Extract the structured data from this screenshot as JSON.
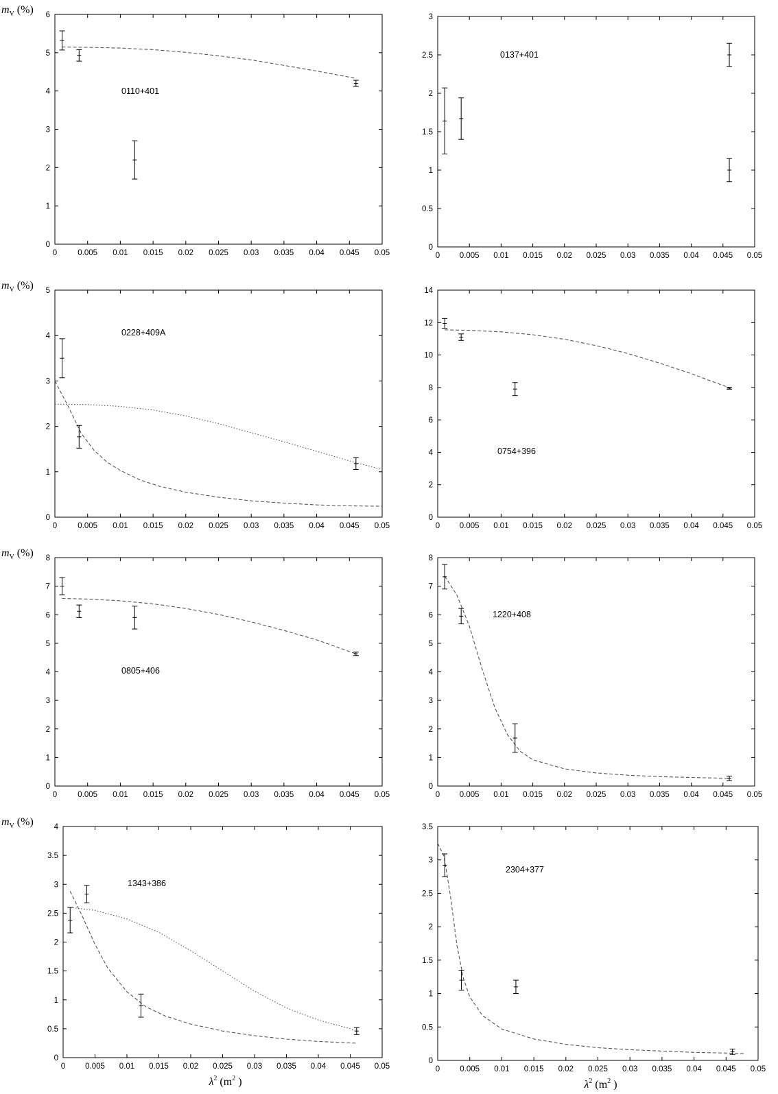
{
  "chart_data": [
    {
      "type": "scatter",
      "source": "0110+401",
      "ylabel": "m_V (%)",
      "xlabel": "",
      "xlim": [
        0,
        0.05
      ],
      "ylim": [
        0,
        6
      ],
      "xticks": [
        "0",
        "0.005",
        "0.01",
        "0.015",
        "0.02",
        "0.025",
        "0.03",
        "0.035",
        "0.04",
        "0.045",
        "0.05"
      ],
      "yticks": [
        "0",
        "1",
        "2",
        "3",
        "4",
        "5",
        "6"
      ],
      "points": [
        {
          "x": 0.0011,
          "y": 5.32,
          "err": 0.25
        },
        {
          "x": 0.0037,
          "y": 4.93,
          "err": 0.15
        },
        {
          "x": 0.0122,
          "y": 2.2,
          "err": 0.5
        },
        {
          "x": 0.046,
          "y": 4.2,
          "err": 0.08
        }
      ],
      "curves": [
        {
          "style": "dashed",
          "x": [
            0.0011,
            0.005,
            0.01,
            0.015,
            0.02,
            0.025,
            0.03,
            0.035,
            0.04,
            0.046
          ],
          "y": [
            5.15,
            5.14,
            5.12,
            5.08,
            5.01,
            4.92,
            4.81,
            4.67,
            4.52,
            4.33
          ]
        }
      ]
    },
    {
      "type": "scatter",
      "source": "0137+401",
      "ylabel": "",
      "xlabel": "",
      "xlim": [
        0,
        0.05
      ],
      "ylim": [
        0,
        3
      ],
      "xticks": [
        "0",
        "0.005",
        "0.01",
        "0.015",
        "0.02",
        "0.025",
        "0.03",
        "0.035",
        "0.04",
        "0.045",
        "0.05"
      ],
      "yticks": [
        "0",
        "0.5",
        "1",
        "1.5",
        "2",
        "2.5",
        "3"
      ],
      "points": [
        {
          "x": 0.0011,
          "y": 1.64,
          "err": 0.43
        },
        {
          "x": 0.0037,
          "y": 1.67,
          "err": 0.27
        },
        {
          "x": 0.046,
          "y": 2.5,
          "err": 0.15
        },
        {
          "x": 0.046,
          "y": 1.0,
          "err": 0.15
        }
      ],
      "curves": []
    },
    {
      "type": "scatter",
      "source": "0228+409A",
      "ylabel": "m_V (%)",
      "xlabel": "",
      "xlim": [
        0,
        0.05
      ],
      "ylim": [
        0,
        5
      ],
      "xticks": [
        "0",
        "0.005",
        "0.01",
        "0.015",
        "0.02",
        "0.025",
        "0.03",
        "0.035",
        "0.04",
        "0.045",
        "0.05"
      ],
      "yticks": [
        "0",
        "1",
        "2",
        "3",
        "4",
        "5"
      ],
      "points": [
        {
          "x": 0.0011,
          "y": 3.5,
          "err": 0.43
        },
        {
          "x": 0.0037,
          "y": 1.77,
          "err": 0.25
        },
        {
          "x": 0.046,
          "y": 1.18,
          "err": 0.13
        }
      ],
      "curves": [
        {
          "style": "dashed",
          "x": [
            0,
            0.002,
            0.004,
            0.006,
            0.008,
            0.01,
            0.013,
            0.016,
            0.02,
            0.025,
            0.03,
            0.035,
            0.04,
            0.045,
            0.05
          ],
          "y": [
            3.0,
            2.45,
            1.85,
            1.47,
            1.21,
            1.03,
            0.82,
            0.68,
            0.55,
            0.44,
            0.36,
            0.31,
            0.27,
            0.25,
            0.24
          ]
        },
        {
          "style": "dotted",
          "x": [
            0,
            0.005,
            0.01,
            0.015,
            0.02,
            0.025,
            0.03,
            0.035,
            0.04,
            0.045,
            0.05
          ],
          "y": [
            2.49,
            2.48,
            2.44,
            2.36,
            2.23,
            2.06,
            1.86,
            1.66,
            1.45,
            1.24,
            1.05
          ]
        }
      ]
    },
    {
      "type": "scatter",
      "source": "0754+396",
      "ylabel": "",
      "xlabel": "",
      "xlim": [
        0,
        0.05
      ],
      "ylim": [
        0,
        14
      ],
      "xticks": [
        "0",
        "0.005",
        "0.01",
        "0.015",
        "0.02",
        "0.025",
        "0.03",
        "0.035",
        "0.04",
        "0.045",
        "0.05"
      ],
      "yticks": [
        "0",
        "2",
        "4",
        "6",
        "8",
        "10",
        "12",
        "14"
      ],
      "points": [
        {
          "x": 0.0011,
          "y": 11.95,
          "err": 0.3
        },
        {
          "x": 0.0037,
          "y": 11.1,
          "err": 0.2
        },
        {
          "x": 0.0122,
          "y": 7.9,
          "err": 0.4
        },
        {
          "x": 0.046,
          "y": 7.95,
          "err": 0.06
        }
      ],
      "curves": [
        {
          "style": "dashed",
          "x": [
            0.0011,
            0.005,
            0.01,
            0.015,
            0.02,
            0.025,
            0.03,
            0.035,
            0.04,
            0.046
          ],
          "y": [
            11.55,
            11.52,
            11.43,
            11.25,
            10.97,
            10.58,
            10.09,
            9.5,
            8.85,
            7.98
          ]
        }
      ]
    },
    {
      "type": "scatter",
      "source": "0805+406",
      "ylabel": "m_V (%)",
      "xlabel": "",
      "xlim": [
        0,
        0.05
      ],
      "ylim": [
        0,
        8
      ],
      "xticks": [
        "0",
        "0.005",
        "0.01",
        "0.015",
        "0.02",
        "0.025",
        "0.03",
        "0.035",
        "0.04",
        "0.045",
        "0.05"
      ],
      "yticks": [
        "0",
        "1",
        "2",
        "3",
        "4",
        "5",
        "6",
        "7",
        "8"
      ],
      "points": [
        {
          "x": 0.0011,
          "y": 7.0,
          "err": 0.3
        },
        {
          "x": 0.0037,
          "y": 6.12,
          "err": 0.22
        },
        {
          "x": 0.0122,
          "y": 5.9,
          "err": 0.4
        },
        {
          "x": 0.046,
          "y": 4.63,
          "err": 0.06
        }
      ],
      "curves": [
        {
          "style": "dashed",
          "x": [
            0.0011,
            0.005,
            0.01,
            0.015,
            0.02,
            0.025,
            0.03,
            0.035,
            0.04,
            0.046
          ],
          "y": [
            6.57,
            6.55,
            6.49,
            6.38,
            6.22,
            6.01,
            5.75,
            5.45,
            5.12,
            4.63
          ]
        }
      ]
    },
    {
      "type": "scatter",
      "source": "1220+408",
      "ylabel": "",
      "xlabel": "",
      "xlim": [
        0,
        0.05
      ],
      "ylim": [
        0,
        8
      ],
      "xticks": [
        "0",
        "0.005",
        "0.01",
        "0.015",
        "0.02",
        "0.025",
        "0.03",
        "0.035",
        "0.04",
        "0.045",
        "0.05"
      ],
      "yticks": [
        "0",
        "1",
        "2",
        "3",
        "4",
        "5",
        "6",
        "7",
        "8"
      ],
      "points": [
        {
          "x": 0.0011,
          "y": 7.33,
          "err": 0.43
        },
        {
          "x": 0.0037,
          "y": 5.95,
          "err": 0.27
        },
        {
          "x": 0.0122,
          "y": 1.68,
          "err": 0.5
        },
        {
          "x": 0.046,
          "y": 0.27,
          "err": 0.08
        }
      ],
      "curves": [
        {
          "style": "dashed",
          "x": [
            0.0011,
            0.003,
            0.005,
            0.007,
            0.009,
            0.011,
            0.013,
            0.015,
            0.02,
            0.025,
            0.03,
            0.035,
            0.04,
            0.046
          ],
          "y": [
            7.35,
            6.7,
            5.6,
            4.1,
            2.75,
            1.8,
            1.22,
            0.92,
            0.6,
            0.46,
            0.38,
            0.33,
            0.3,
            0.27
          ]
        }
      ]
    },
    {
      "type": "scatter",
      "source": "1343+386",
      "ylabel": "m_V (%)",
      "xlabel": "λ² (m²)",
      "xlim": [
        0,
        0.05
      ],
      "ylim": [
        0,
        4
      ],
      "xticks": [
        "0",
        "0.005",
        "0.01",
        "0.015",
        "0.02",
        "0.025",
        "0.03",
        "0.035",
        "0.04",
        "0.045",
        "0.05"
      ],
      "yticks": [
        "0",
        "0.5",
        "1",
        "1.5",
        "2",
        "2.5",
        "3",
        "3.5",
        "4"
      ],
      "points": [
        {
          "x": 0.0011,
          "y": 2.38,
          "err": 0.22
        },
        {
          "x": 0.0037,
          "y": 2.83,
          "err": 0.15
        },
        {
          "x": 0.0122,
          "y": 0.9,
          "err": 0.2
        },
        {
          "x": 0.046,
          "y": 0.46,
          "err": 0.06
        }
      ],
      "curves": [
        {
          "style": "dashed",
          "x": [
            0.0011,
            0.003,
            0.005,
            0.007,
            0.01,
            0.013,
            0.016,
            0.02,
            0.025,
            0.03,
            0.035,
            0.04,
            0.046
          ],
          "y": [
            2.88,
            2.45,
            1.96,
            1.55,
            1.14,
            0.88,
            0.72,
            0.58,
            0.46,
            0.38,
            0.32,
            0.28,
            0.25
          ]
        },
        {
          "style": "dotted",
          "x": [
            0.0011,
            0.005,
            0.01,
            0.015,
            0.02,
            0.025,
            0.03,
            0.035,
            0.04,
            0.046
          ],
          "y": [
            2.6,
            2.55,
            2.4,
            2.17,
            1.85,
            1.5,
            1.15,
            0.86,
            0.65,
            0.47
          ]
        }
      ]
    },
    {
      "type": "scatter",
      "source": "2304+377",
      "ylabel": "",
      "xlabel": "λ² (m²)",
      "xlim": [
        0,
        0.05
      ],
      "ylim": [
        0,
        3.5
      ],
      "xticks": [
        "0",
        "0.005",
        "0.01",
        "0.015",
        "0.02",
        "0.025",
        "0.03",
        "0.035",
        "0.04",
        "0.045",
        "0.05"
      ],
      "yticks": [
        "0",
        "0.5",
        "1",
        "1.5",
        "2",
        "2.5",
        "3",
        "3.5"
      ],
      "points": [
        {
          "x": 0.0011,
          "y": 2.92,
          "err": 0.17
        },
        {
          "x": 0.0037,
          "y": 1.2,
          "err": 0.15
        },
        {
          "x": 0.0122,
          "y": 1.1,
          "err": 0.1
        },
        {
          "x": 0.046,
          "y": 0.13,
          "err": 0.04
        }
      ],
      "curves": [
        {
          "style": "dashed",
          "x": [
            0,
            0.001,
            0.002,
            0.003,
            0.004,
            0.005,
            0.007,
            0.01,
            0.015,
            0.02,
            0.025,
            0.03,
            0.035,
            0.04,
            0.045,
            0.048
          ],
          "y": [
            3.25,
            3.05,
            2.45,
            1.72,
            1.23,
            0.95,
            0.67,
            0.47,
            0.32,
            0.24,
            0.19,
            0.16,
            0.14,
            0.12,
            0.11,
            0.1
          ]
        }
      ]
    }
  ]
}
